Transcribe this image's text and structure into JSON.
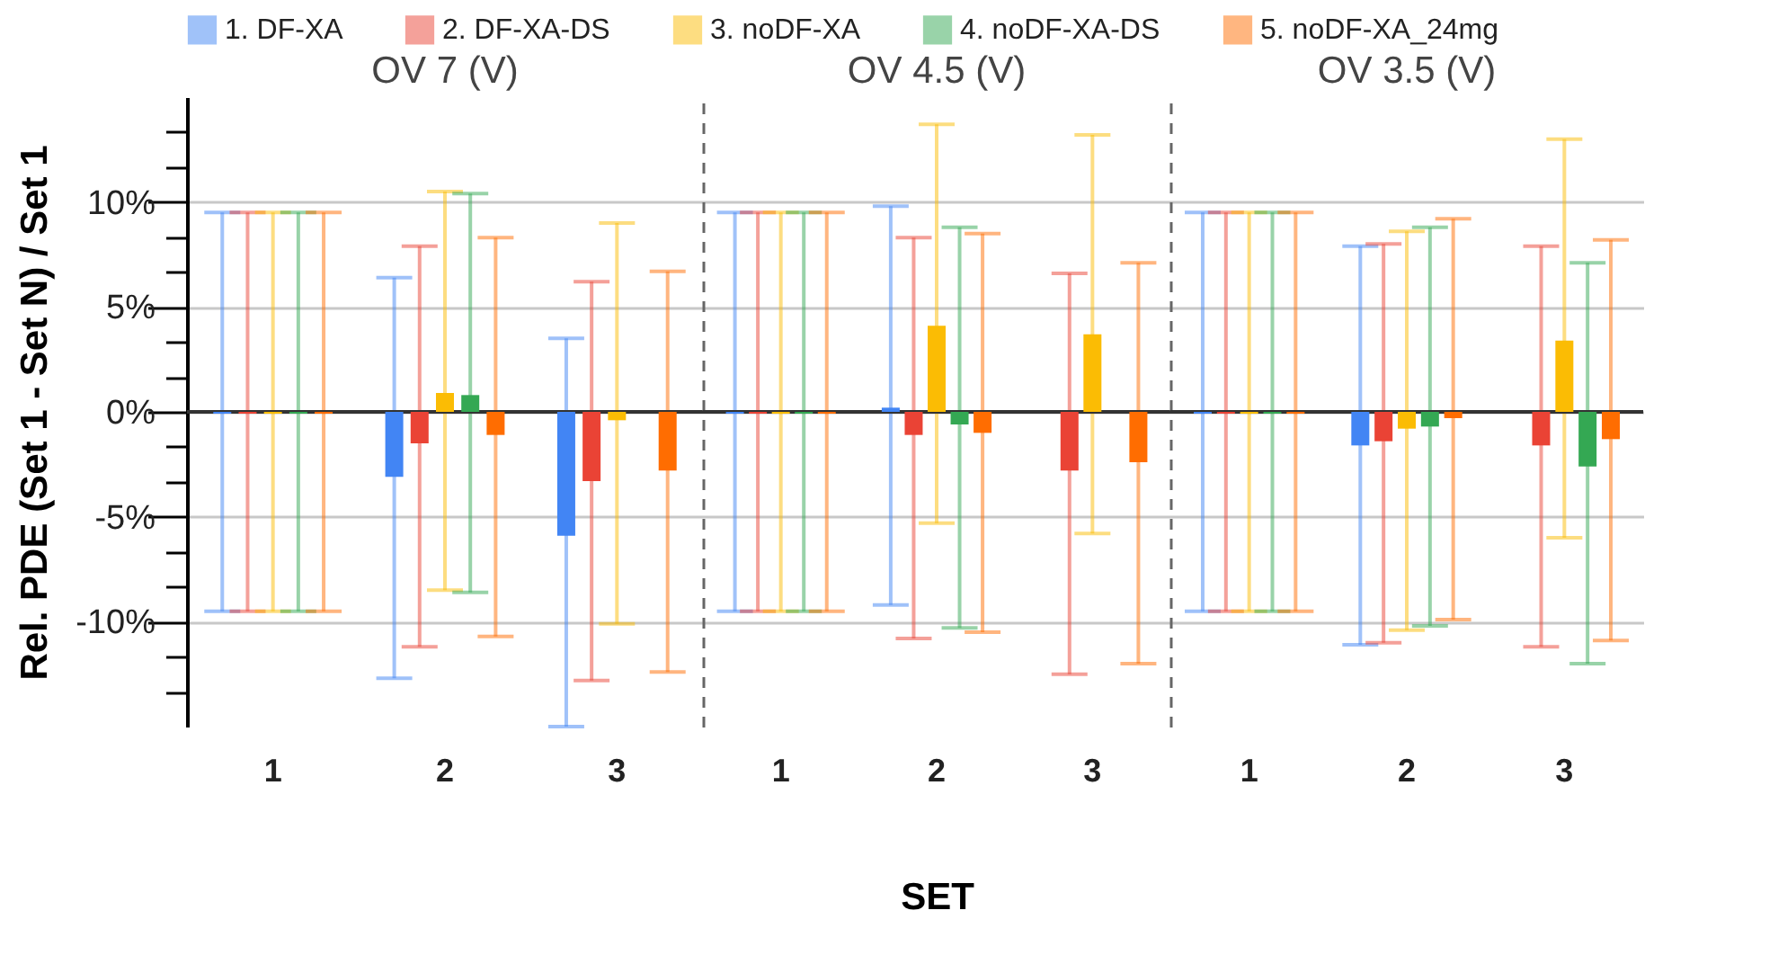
{
  "chart_data": [
    {
      "type": "bar",
      "title": "OV 7 (V)",
      "ylabel": "Rel. PDE (Set 1 - Set N) / Set 1",
      "categories": [
        "1",
        "2",
        "3"
      ],
      "series": [
        {
          "name": "1. DF-XA",
          "color": "#4285f4",
          "values": [
            0,
            -3.1,
            -5.9
          ],
          "errors": [
            [
              -9.5,
              9.5
            ],
            [
              -12.7,
              6.4
            ],
            [
              -15,
              3.5
            ]
          ]
        },
        {
          "name": "2. DF-XA-DS",
          "color": "#ea4335",
          "values": [
            0,
            -1.5,
            -3.3
          ],
          "errors": [
            [
              -9.5,
              9.5
            ],
            [
              -11.2,
              7.9
            ],
            [
              -12.8,
              6.2
            ]
          ]
        },
        {
          "name": "3. noDF-XA",
          "color": "#fbbc04",
          "values": [
            0,
            0.9,
            -0.4
          ],
          "errors": [
            [
              -9.5,
              9.5
            ],
            [
              -8.5,
              10.5
            ],
            [
              -10.1,
              9.0
            ]
          ]
        },
        {
          "name": "4. noDF-XA-DS",
          "color": "#34a853",
          "values": [
            0,
            0.8,
            null
          ],
          "errors": [
            [
              -9.5,
              9.5
            ],
            [
              -8.6,
              10.4
            ],
            null
          ]
        },
        {
          "name": "5. noDF-XA_24mg",
          "color": "#ff6d01",
          "values": [
            0,
            -1.1,
            -2.8
          ],
          "errors": [
            [
              -9.5,
              9.5
            ],
            [
              -10.7,
              8.3
            ],
            [
              -12.4,
              6.7
            ]
          ]
        }
      ],
      "ylim": [
        -15,
        15
      ],
      "yticks": [
        {
          "value": 13.33,
          "label": null
        },
        {
          "value": 11.67,
          "label": null
        },
        {
          "value": 10,
          "label": "10%"
        },
        {
          "value": 8.33,
          "label": null
        },
        {
          "value": 6.67,
          "label": null
        },
        {
          "value": 5,
          "label": "5%"
        },
        {
          "value": 3.33,
          "label": null
        },
        {
          "value": 1.67,
          "label": null
        },
        {
          "value": 0,
          "label": "0%"
        },
        {
          "value": -1.67,
          "label": null
        },
        {
          "value": -3.33,
          "label": null
        },
        {
          "value": -5,
          "label": "-5%"
        },
        {
          "value": -6.67,
          "label": null
        },
        {
          "value": -8.33,
          "label": null
        },
        {
          "value": -10,
          "label": "-10%"
        },
        {
          "value": -11.67,
          "label": null
        },
        {
          "value": -13.33,
          "label": null
        }
      ],
      "grid": "y",
      "legend": "top",
      "ref_lines": [
        {
          "axis": "y",
          "value": 0,
          "color": "#333333"
        }
      ]
    },
    {
      "type": "bar",
      "title": "OV 4.5 (V)",
      "xlabel": "SET",
      "categories": [
        "1",
        "2",
        "3"
      ],
      "series": [
        {
          "color": "#4285f4",
          "values": [
            0,
            0.2,
            null
          ],
          "errors": [
            [
              -9.5,
              9.5
            ],
            [
              -9.2,
              9.8
            ],
            null
          ]
        },
        {
          "color": "#ea4335",
          "values": [
            0,
            -1.1,
            -2.8
          ],
          "errors": [
            [
              -9.5,
              9.5
            ],
            [
              -10.8,
              8.3
            ],
            [
              -12.5,
              6.6
            ]
          ]
        },
        {
          "color": "#fbbc04",
          "values": [
            0,
            4.1,
            3.7
          ],
          "errors": [
            [
              -9.5,
              9.5
            ],
            [
              -5.3,
              13.7
            ],
            [
              -5.8,
              13.2
            ]
          ]
        },
        {
          "color": "#34a853",
          "values": [
            0,
            -0.6,
            null
          ],
          "errors": [
            [
              -9.5,
              9.5
            ],
            [
              -10.3,
              8.8
            ],
            null
          ]
        },
        {
          "color": "#ff6d01",
          "values": [
            0,
            -1.0,
            -2.4
          ],
          "errors": [
            [
              -9.5,
              9.5
            ],
            [
              -10.5,
              8.5
            ],
            [
              -12.0,
              7.1
            ]
          ]
        }
      ],
      "ylim": [
        -15,
        15
      ],
      "yticks": [
        10,
        5,
        0,
        -5,
        -10
      ],
      "grid": "y",
      "tick_labels": "x",
      "ref_lines": [
        {
          "axis": "y",
          "value": 0,
          "color": "#333333"
        }
      ]
    },
    {
      "type": "bar",
      "title": "OV 3.5 (V)",
      "categories": [
        "1",
        "2",
        "3"
      ],
      "series": [
        {
          "color": "#4285f4",
          "values": [
            0,
            -1.6,
            null
          ],
          "errors": [
            [
              -9.5,
              9.5
            ],
            [
              -11.1,
              7.9
            ],
            null
          ]
        },
        {
          "color": "#ea4335",
          "values": [
            0,
            -1.4,
            -1.6
          ],
          "errors": [
            [
              -9.5,
              9.5
            ],
            [
              -11.0,
              8.0
            ],
            [
              -11.2,
              7.9
            ]
          ]
        },
        {
          "color": "#fbbc04",
          "values": [
            0,
            -0.8,
            3.4
          ],
          "errors": [
            [
              -9.5,
              9.5
            ],
            [
              -10.4,
              8.6
            ],
            [
              -6.0,
              13.0
            ]
          ]
        },
        {
          "color": "#34a853",
          "values": [
            0,
            -0.7,
            -2.6
          ],
          "errors": [
            [
              -9.5,
              9.5
            ],
            [
              -10.2,
              8.8
            ],
            [
              -12.0,
              7.1
            ]
          ]
        },
        {
          "color": "#ff6d01",
          "values": [
            0,
            -0.3,
            -1.3
          ],
          "errors": [
            [
              -9.5,
              9.5
            ],
            [
              -9.9,
              9.2
            ],
            [
              -10.9,
              8.2
            ]
          ]
        }
      ],
      "ylim": [
        -15,
        15
      ],
      "yticks": [
        10,
        5,
        0,
        -5,
        -10
      ],
      "grid": "y",
      "tick_labels": "x",
      "ref_lines": [
        {
          "axis": "y",
          "value": 0,
          "color": "#333333"
        }
      ]
    }
  ]
}
